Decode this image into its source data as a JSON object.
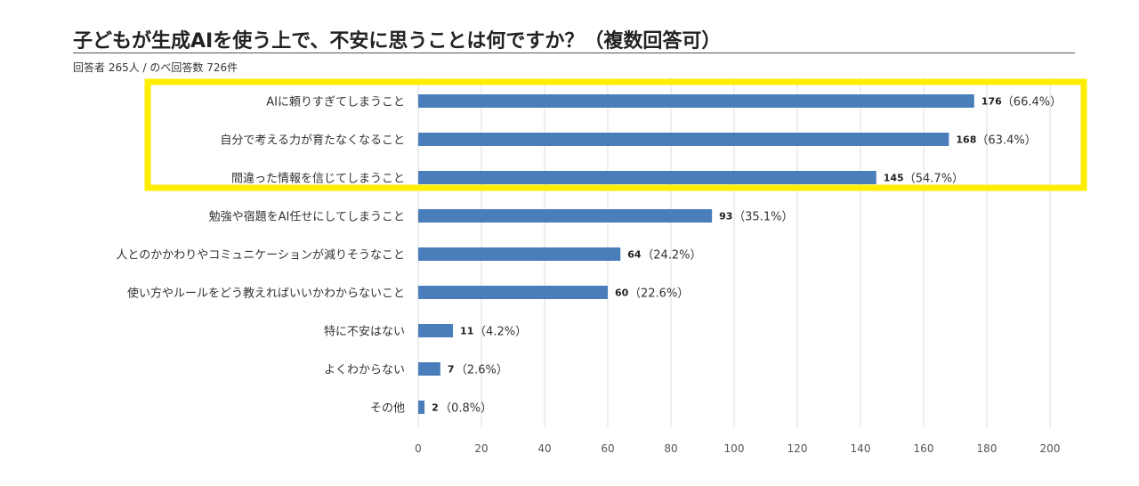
{
  "chart_data": {
    "type": "bar",
    "orientation": "horizontal",
    "title": "子どもが生成AIを使う上で、不安に思うことは何ですか？（複数回答可）",
    "subtitle": "回答者 265人 / のべ回答数 726件",
    "categories": [
      "AIに頼りすぎてしまうこと",
      "自分で考える力が育たなくなること",
      "間違った情報を信じてしまうこと",
      "勉強や宿題をAI任せにしてしまうこと",
      "人とのかかわりやコミュニケーションが減りそうなこと",
      "使い方やルールをどう教えればいいかわからないこと",
      "特に不安はない",
      "よくわからない",
      "その他"
    ],
    "values": [
      176,
      168,
      145,
      93,
      64,
      60,
      11,
      7,
      2
    ],
    "percent_labels": [
      "（66.4%）",
      "（63.4%）",
      "（54.7%）",
      "（35.1%）",
      "（24.2%）",
      "（22.6%）",
      "（4.2%）",
      "（2.6%）",
      "（0.8%）"
    ],
    "xlim": [
      0,
      200
    ],
    "xticks": [
      0,
      20,
      40,
      60,
      80,
      100,
      120,
      140,
      160,
      180,
      200
    ],
    "grid": true,
    "bar_color": "#4a7ebb",
    "highlight": {
      "color": "#ffee00",
      "categories": [
        "AIに頼りすぎてしまうこと",
        "自分で考える力が育たなくなること",
        "間違った情報を信じてしまうこと"
      ]
    }
  }
}
